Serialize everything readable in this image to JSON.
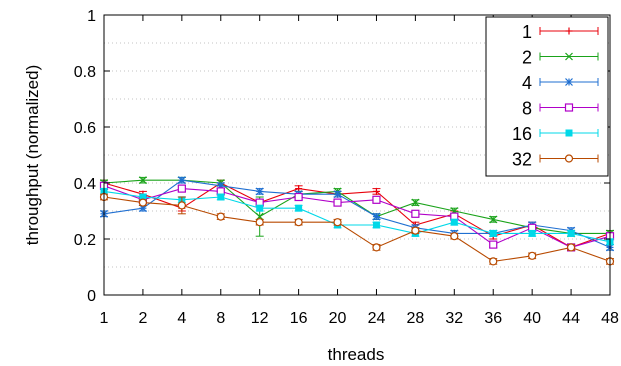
{
  "chart_data": {
    "type": "line",
    "title": "",
    "xlabel": "threads",
    "ylabel": "throughput (normalized)",
    "x": [
      "1",
      "2",
      "4",
      "8",
      "12",
      "16",
      "20",
      "24",
      "28",
      "32",
      "36",
      "40",
      "44",
      "48"
    ],
    "xticks": [
      "1",
      "2",
      "4",
      "8",
      "12",
      "16",
      "20",
      "24",
      "28",
      "32",
      "36",
      "40",
      "44",
      "48"
    ],
    "yticks": [
      "0",
      "0.2",
      "0.4",
      "0.6",
      "0.8",
      "1"
    ],
    "ylim": [
      0,
      1
    ],
    "grid": "horizontal dotted",
    "legend_position": "top-right",
    "series": [
      {
        "name": "1",
        "color": "#e8000b",
        "marker": "plus",
        "values": [
          0.4,
          0.36,
          0.31,
          0.4,
          0.33,
          0.38,
          0.36,
          0.37,
          0.25,
          0.29,
          0.21,
          0.25,
          0.17,
          0.22
        ],
        "errors": [
          0.01,
          0.01,
          0.01,
          0.01,
          0.01,
          0.01,
          0.01,
          0.01,
          0.01,
          0.01,
          0.01,
          0.01,
          0.01,
          0.01
        ]
      },
      {
        "name": "2",
        "color": "#1aa31a",
        "marker": "cross",
        "values": [
          0.4,
          0.41,
          0.41,
          0.4,
          0.28,
          0.36,
          0.37,
          0.28,
          0.33,
          0.3,
          0.27,
          0.24,
          0.22,
          0.22
        ],
        "errors": [
          0.01,
          0.01,
          0.01,
          0.01,
          0.07,
          0.01,
          0.01,
          0.01,
          0.01,
          0.01,
          0.01,
          0.01,
          0.01,
          0.01
        ]
      },
      {
        "name": "4",
        "color": "#1f6fd1",
        "marker": "star",
        "values": [
          0.29,
          0.31,
          0.41,
          0.39,
          0.37,
          0.36,
          0.36,
          0.28,
          0.24,
          0.22,
          0.22,
          0.25,
          0.23,
          0.17
        ],
        "errors": [
          0.01,
          0.01,
          0.01,
          0.01,
          0.01,
          0.01,
          0.01,
          0.01,
          0.01,
          0.01,
          0.01,
          0.01,
          0.01,
          0.01
        ]
      },
      {
        "name": "8",
        "color": "#b000c8",
        "marker": "square-open",
        "values": [
          0.39,
          0.34,
          0.38,
          0.37,
          0.33,
          0.35,
          0.33,
          0.34,
          0.29,
          0.28,
          0.18,
          0.24,
          0.17,
          0.21
        ],
        "errors": [
          0.01,
          0.01,
          0.01,
          0.01,
          0.01,
          0.01,
          0.01,
          0.01,
          0.01,
          0.01,
          0.01,
          0.01,
          0.01,
          0.01
        ]
      },
      {
        "name": "16",
        "color": "#00d8e8",
        "marker": "square-filled",
        "values": [
          0.37,
          0.35,
          0.34,
          0.35,
          0.31,
          0.31,
          0.25,
          0.25,
          0.22,
          0.26,
          0.22,
          0.22,
          0.22,
          0.19
        ],
        "errors": [
          0.01,
          0.01,
          0.01,
          0.01,
          0.01,
          0.01,
          0.01,
          0.01,
          0.01,
          0.01,
          0.01,
          0.01,
          0.01,
          0.01
        ]
      },
      {
        "name": "32",
        "color": "#b84a00",
        "marker": "circle-open",
        "values": [
          0.35,
          0.33,
          0.32,
          0.28,
          0.26,
          0.26,
          0.26,
          0.17,
          0.23,
          0.21,
          0.12,
          0.14,
          0.17,
          0.12
        ],
        "errors": [
          0.01,
          0.01,
          0.03,
          0.01,
          0.01,
          0.01,
          0.01,
          0.01,
          0.01,
          0.01,
          0.01,
          0.01,
          0.01,
          0.01
        ]
      }
    ]
  }
}
